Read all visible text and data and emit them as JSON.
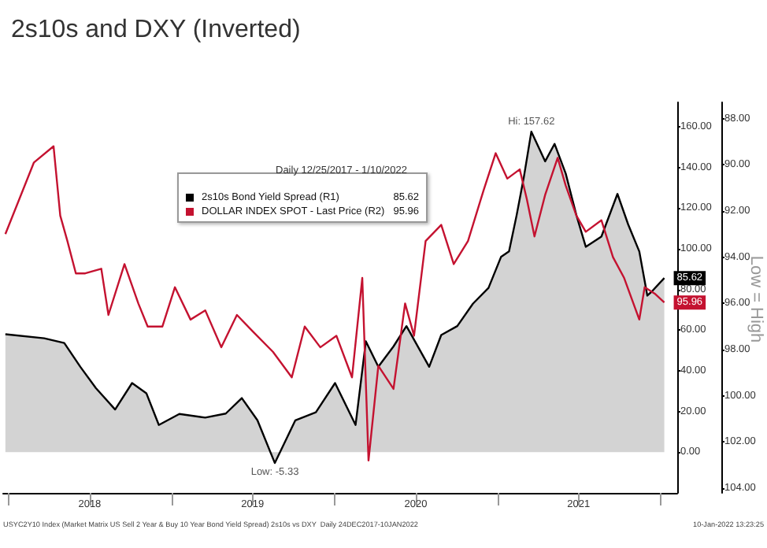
{
  "chart_data": {
    "type": "line",
    "title": "2s10s and DXY (Inverted)",
    "legend_title": "Daily 12/25/2017 - 1/10/2022",
    "legend": "top",
    "grid": false,
    "marker": "none",
    "xlim": [
      "2017-12-20",
      "2022-02-08"
    ],
    "xticks": [
      {
        "value": "2018-01-01",
        "label": null
      },
      {
        "value": "2018-07-02",
        "label": "2018"
      },
      {
        "value": "2019-01-01",
        "label": null
      },
      {
        "value": "2019-07-02",
        "label": "2019"
      },
      {
        "value": "2020-01-01",
        "label": null
      },
      {
        "value": "2020-07-02",
        "label": "2020"
      },
      {
        "value": "2021-01-01",
        "label": null
      },
      {
        "value": "2021-07-02",
        "label": "2021"
      },
      {
        "value": "2022-01-01",
        "label": null
      }
    ],
    "ylim": [
      -20,
      172
    ],
    "yticks": [
      {
        "value": 0,
        "label": "0.00"
      },
      {
        "value": 20,
        "label": "20.00"
      },
      {
        "value": 40,
        "label": "40.00"
      },
      {
        "value": 60,
        "label": "60.00"
      },
      {
        "value": 80,
        "label": "80.00"
      },
      {
        "value": 100,
        "label": "100.00"
      },
      {
        "value": 120,
        "label": "120.00"
      },
      {
        "value": 140,
        "label": "140.00"
      },
      {
        "value": 160,
        "label": "160.00"
      }
    ],
    "y2lim": [
      104.2,
      87.3
    ],
    "y2ticks": [
      {
        "value": 88,
        "label": "88.00"
      },
      {
        "value": 90,
        "label": "90.00"
      },
      {
        "value": 92,
        "label": "92.00"
      },
      {
        "value": 94,
        "label": "94.00"
      },
      {
        "value": 96,
        "label": "96.00"
      },
      {
        "value": 98,
        "label": "98.00"
      },
      {
        "value": 100,
        "label": "100.00"
      },
      {
        "value": 102,
        "label": "102.00"
      },
      {
        "value": 104,
        "label": "104.00"
      }
    ],
    "series": [
      {
        "name": "2s10s Bond Yield Spread (R1)",
        "type": "area",
        "axis": "y",
        "color": "#000000",
        "x": [
          "2017-12-25",
          "2018-03-22",
          "2018-05-06",
          "2018-06-11",
          "2018-07-16",
          "2018-08-28",
          "2018-10-05",
          "2018-11-06",
          "2018-12-04",
          "2019-01-19",
          "2019-03-18",
          "2019-05-03",
          "2019-06-08",
          "2019-07-13",
          "2019-08-21",
          "2019-10-06",
          "2019-11-21",
          "2020-01-03",
          "2020-02-18",
          "2020-03-12",
          "2020-04-09",
          "2020-05-13",
          "2020-06-11",
          "2020-08-01",
          "2020-08-28",
          "2020-10-03",
          "2020-11-07",
          "2020-12-12",
          "2021-01-09",
          "2021-01-27",
          "2021-02-13",
          "2021-03-01",
          "2021-03-18",
          "2021-04-18",
          "2021-05-09",
          "2021-06-03",
          "2021-06-27",
          "2021-07-18",
          "2021-08-22",
          "2021-09-27",
          "2021-10-21",
          "2021-11-15",
          "2021-12-03",
          "2021-12-13",
          "2022-01-10"
        ],
        "values": [
          58,
          56,
          53.7,
          42,
          31.5,
          21,
          34,
          29,
          13.4,
          18.8,
          17,
          19,
          26.6,
          15.7,
          -5.33,
          15.7,
          19.6,
          34,
          13.4,
          54.5,
          42,
          52,
          62,
          42,
          57.6,
          62,
          73,
          80.8,
          96,
          98.7,
          116.5,
          135,
          157.62,
          143,
          151.6,
          137,
          116.5,
          101,
          106,
          127,
          112,
          98.7,
          77,
          79,
          85.62
        ],
        "value_labels": [
          null,
          null,
          null,
          null,
          null,
          null,
          null,
          null,
          null,
          null,
          null,
          null,
          null,
          null,
          null,
          null,
          null,
          null,
          null,
          null,
          null,
          null,
          null,
          null,
          null,
          null,
          null,
          null,
          null,
          null,
          null,
          null,
          null,
          null,
          null,
          null,
          null,
          null,
          null,
          null,
          null,
          null,
          null,
          null,
          "85.62"
        ]
      },
      {
        "name": "DOLLAR INDEX SPOT - Last Price (R2)",
        "type": "line",
        "axis": "y2",
        "color": "#c41230",
        "x": [
          "2017-12-25",
          "2018-02-27",
          "2018-04-12",
          "2018-04-27",
          "2018-05-13",
          "2018-06-01",
          "2018-06-22",
          "2018-07-28",
          "2018-08-13",
          "2018-09-18",
          "2018-10-19",
          "2018-11-09",
          "2018-12-12",
          "2019-01-09",
          "2019-02-13",
          "2019-03-18",
          "2019-04-23",
          "2019-05-28",
          "2019-07-02",
          "2019-08-17",
          "2019-09-28",
          "2019-10-27",
          "2019-12-01",
          "2020-01-06",
          "2020-02-10",
          "2020-03-04",
          "2020-03-18",
          "2020-04-09",
          "2020-05-13",
          "2020-06-08",
          "2020-06-28",
          "2020-07-24",
          "2020-08-28",
          "2020-09-25",
          "2020-10-27",
          "2020-12-01",
          "2020-12-28",
          "2021-01-23",
          "2021-02-20",
          "2021-03-08",
          "2021-03-25",
          "2021-04-18",
          "2021-05-16",
          "2021-06-03",
          "2021-06-27",
          "2021-07-18",
          "2021-08-22",
          "2021-09-17",
          "2021-10-12",
          "2021-11-15",
          "2021-11-27",
          "2021-12-21",
          "2022-01-10"
        ],
        "values": [
          93.0,
          89.9,
          89.2,
          92.2,
          93.3,
          94.7,
          94.7,
          94.5,
          96.5,
          94.3,
          96.0,
          97.0,
          97.0,
          95.3,
          96.7,
          96.3,
          97.9,
          96.5,
          97.2,
          98.1,
          99.2,
          97.0,
          97.9,
          97.4,
          99.2,
          94.9,
          102.8,
          98.7,
          99.7,
          96.0,
          97.4,
          93.3,
          92.6,
          94.3,
          93.3,
          91.1,
          89.5,
          90.6,
          90.2,
          91.5,
          93.1,
          91.3,
          89.7,
          90.9,
          92.2,
          92.9,
          92.4,
          94.0,
          94.9,
          96.7,
          95.3,
          95.6,
          95.96
        ],
        "value_labels": [
          null,
          null,
          null,
          null,
          null,
          null,
          null,
          null,
          null,
          null,
          null,
          null,
          null,
          null,
          null,
          null,
          null,
          null,
          null,
          null,
          null,
          null,
          null,
          null,
          null,
          null,
          null,
          null,
          null,
          null,
          null,
          null,
          null,
          null,
          null,
          null,
          null,
          null,
          null,
          null,
          null,
          null,
          null,
          null,
          null,
          null,
          null,
          null,
          null,
          null,
          null,
          null,
          "95.96"
        ]
      }
    ],
    "annotations": [
      {
        "text": "Hi: 157.62",
        "x": "2021-03-18",
        "y": 157.62
      },
      {
        "text": "Low: -5.33",
        "x": "2019-08-21",
        "y": -5.33
      },
      "Low = High",
      "USYC2Y10 Index (Market Matrix US Sell 2 Year & Buy 10 Year Bond Yield Spread) 2s10s vs DXY  Daily 24DEC2017-10JAN2022",
      "10-Jan-2022 13:23:25"
    ]
  }
}
